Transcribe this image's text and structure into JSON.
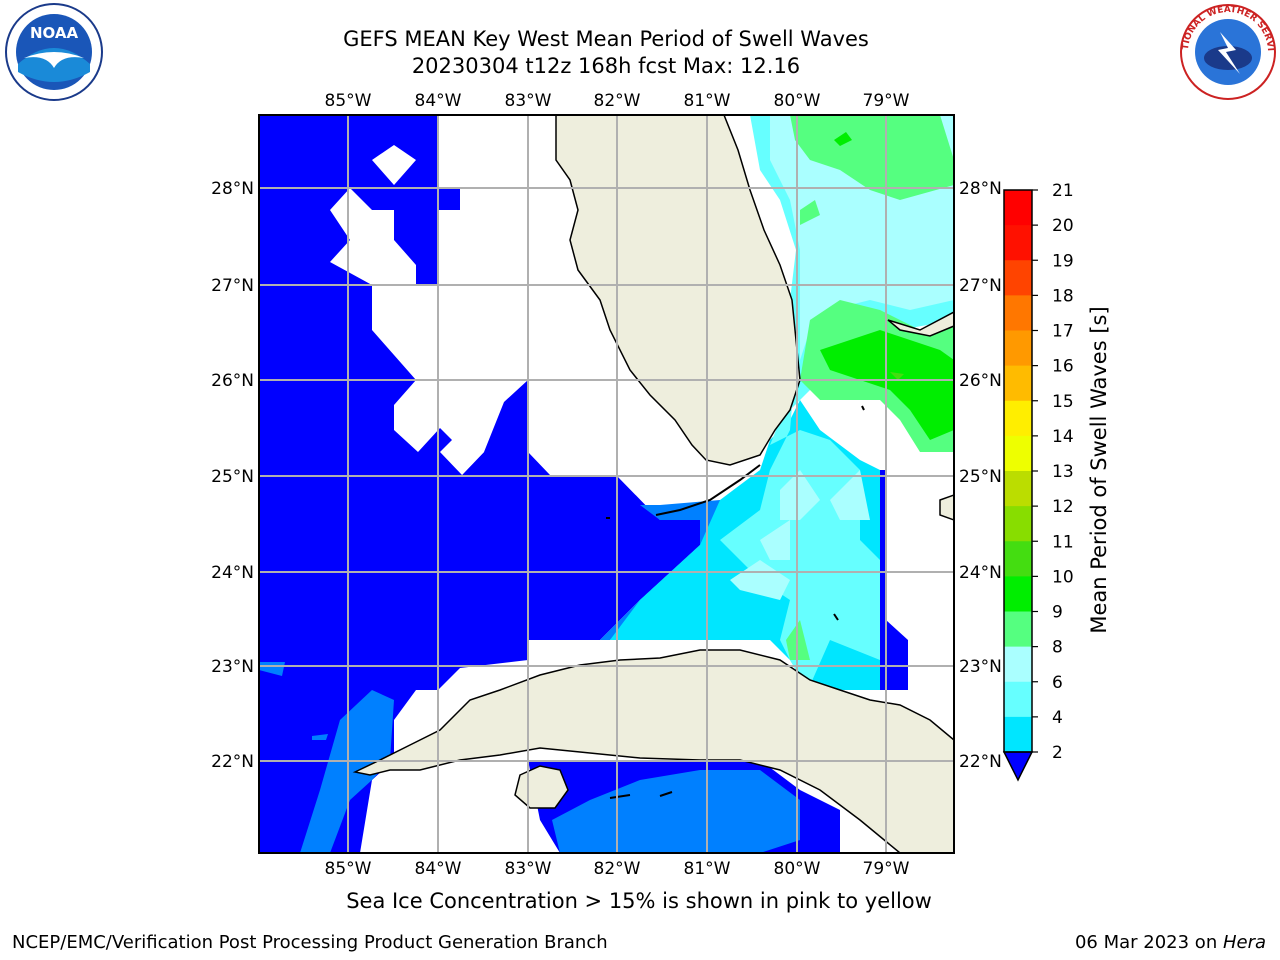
{
  "title": {
    "line1": "GEFS MEAN Key West Mean Period of Swell Waves",
    "line2": "20230304 t12z 168h fcst   Max: 12.16"
  },
  "map": {
    "lon_labels": [
      "85°W",
      "84°W",
      "83°W",
      "82°W",
      "81°W",
      "80°W",
      "79°W"
    ],
    "lat_labels": [
      "28°N",
      "27°N",
      "26°N",
      "25°N",
      "24°N",
      "23°N",
      "22°N"
    ],
    "colors": {
      "land": "#eeeedd",
      "no_data": "#ffffff",
      "grid": "#b0b0b0",
      "coast": "#000000"
    }
  },
  "colorbar": {
    "label": "Mean Period of Swell Waves [s]",
    "ticks": [
      "2",
      "4",
      "6",
      "8",
      "9",
      "10",
      "11",
      "12",
      "13",
      "14",
      "15",
      "16",
      "17",
      "18",
      "19",
      "20",
      "21"
    ],
    "colors": [
      "#0000ff",
      "#0080ff",
      "#00e6ff",
      "#66ffff",
      "#aaffff",
      "#55ff80",
      "#00ee00",
      "#44dd11",
      "#88dd00",
      "#bbdd00",
      "#eeff00",
      "#ffee00",
      "#ffbb00",
      "#ff9900",
      "#ff7700",
      "#ff4400",
      "#ff1100",
      "#ff0000"
    ]
  },
  "caption": "Sea Ice Concentration > 15% is shown in pink to yellow",
  "footer": {
    "left": "NCEP/EMC/Verification Post Processing Product Generation Branch",
    "right_prefix": "06 Mar 2023 on ",
    "right_italic": "Hera"
  },
  "logos": {
    "noaa_text": "NOAA",
    "nws_text": "NATIONAL WEATHER SERVICE"
  }
}
